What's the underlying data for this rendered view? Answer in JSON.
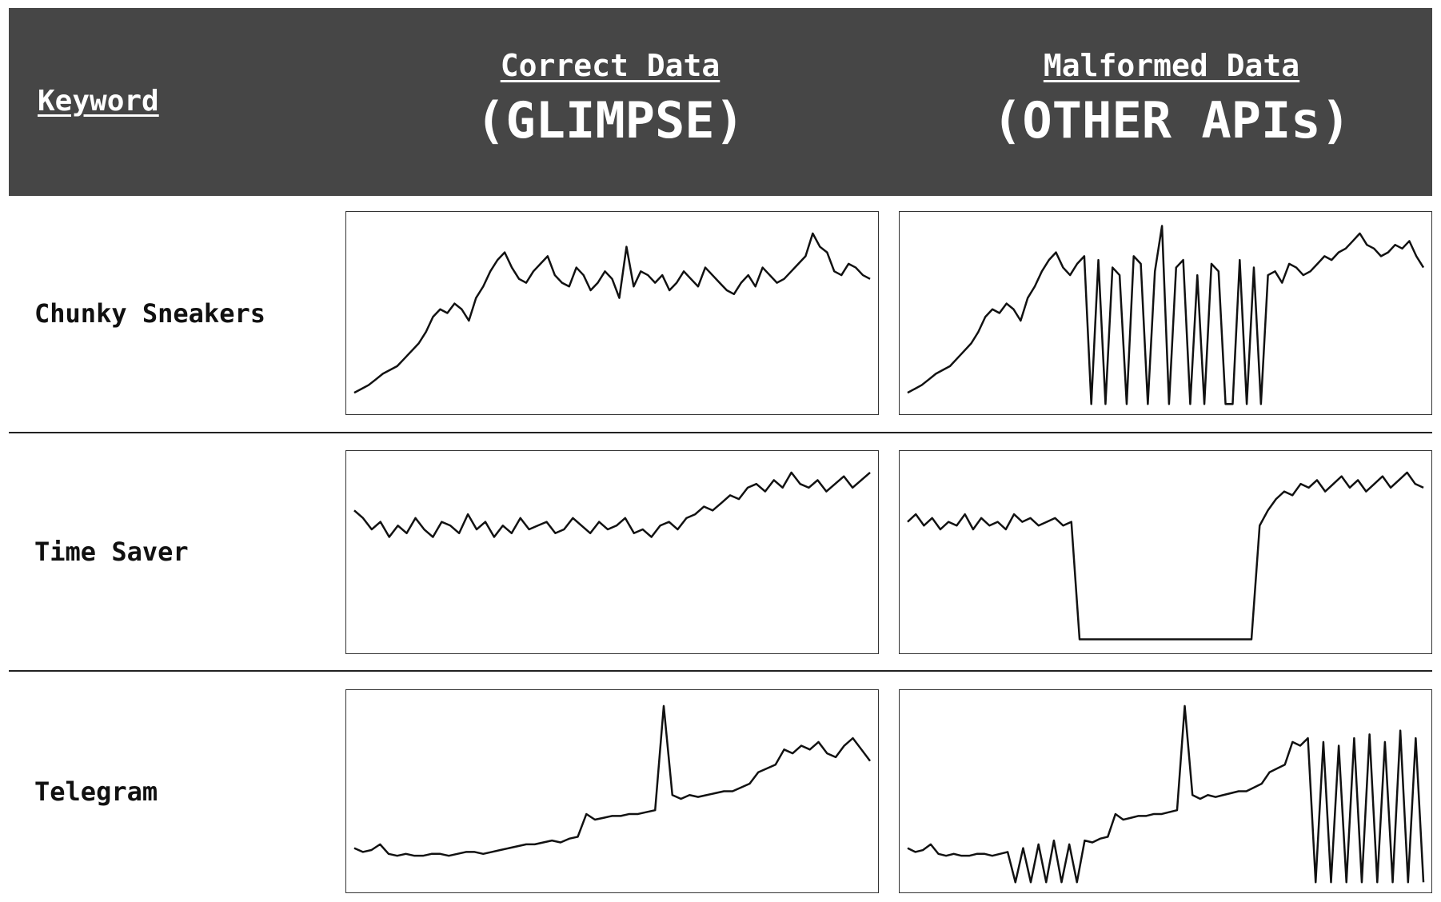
{
  "header": {
    "keyword": "Keyword",
    "col1_sub": "Correct Data",
    "col1_main": "(GLIMPSE)",
    "col2_sub": "Malformed Data",
    "col2_main": "(OTHER APIs)"
  },
  "rows": [
    {
      "label": "Chunky Sneakers"
    },
    {
      "label": "Time Saver"
    },
    {
      "label": "Telegram"
    }
  ],
  "chart_data": [
    {
      "type": "line",
      "keyword": "Chunky Sneakers",
      "source": "Correct Data (GLIMPSE)",
      "ylim": [
        0,
        100
      ],
      "values": [
        8,
        10,
        12,
        15,
        18,
        20,
        22,
        26,
        30,
        34,
        40,
        48,
        52,
        50,
        55,
        52,
        46,
        58,
        64,
        72,
        78,
        82,
        74,
        68,
        66,
        72,
        76,
        80,
        70,
        66,
        64,
        74,
        70,
        62,
        66,
        72,
        68,
        58,
        85,
        64,
        72,
        70,
        66,
        70,
        62,
        66,
        72,
        68,
        64,
        74,
        70,
        66,
        62,
        60,
        66,
        70,
        64,
        74,
        70,
        66,
        68,
        72,
        76,
        80,
        92,
        85,
        82,
        72,
        70,
        76,
        74,
        70,
        68
      ]
    },
    {
      "type": "line",
      "keyword": "Chunky Sneakers",
      "source": "Malformed Data (OTHER APIs)",
      "ylim": [
        0,
        100
      ],
      "values": [
        8,
        10,
        12,
        15,
        18,
        20,
        22,
        26,
        30,
        34,
        40,
        48,
        52,
        50,
        55,
        52,
        46,
        58,
        64,
        72,
        78,
        82,
        74,
        70,
        76,
        80,
        2,
        78,
        2,
        74,
        70,
        2,
        80,
        76,
        2,
        72,
        96,
        2,
        74,
        78,
        2,
        70,
        2,
        76,
        72,
        2,
        2,
        78,
        2,
        74,
        2,
        70,
        72,
        66,
        76,
        74,
        70,
        72,
        76,
        80,
        78,
        82,
        84,
        88,
        92,
        86,
        84,
        80,
        82,
        86,
        84,
        88,
        80,
        74
      ]
    },
    {
      "type": "line",
      "keyword": "Time Saver",
      "source": "Correct Data (GLIMPSE)",
      "ylim": [
        0,
        100
      ],
      "values": [
        72,
        68,
        62,
        66,
        58,
        64,
        60,
        68,
        62,
        58,
        66,
        64,
        60,
        70,
        62,
        66,
        58,
        64,
        60,
        68,
        62,
        64,
        66,
        60,
        62,
        68,
        64,
        60,
        66,
        62,
        64,
        68,
        60,
        62,
        58,
        64,
        66,
        62,
        68,
        70,
        74,
        72,
        76,
        80,
        78,
        84,
        86,
        82,
        88,
        84,
        92,
        86,
        84,
        88,
        82,
        86,
        90,
        84,
        88,
        92
      ]
    },
    {
      "type": "line",
      "keyword": "Time Saver",
      "source": "Malformed Data (OTHER APIs)",
      "ylim": [
        0,
        100
      ],
      "values": [
        66,
        70,
        64,
        68,
        62,
        66,
        64,
        70,
        62,
        68,
        64,
        66,
        62,
        70,
        66,
        68,
        64,
        66,
        68,
        64,
        66,
        4,
        4,
        4,
        4,
        4,
        4,
        4,
        4,
        4,
        4,
        4,
        4,
        4,
        4,
        4,
        4,
        4,
        4,
        4,
        4,
        4,
        4,
        64,
        72,
        78,
        82,
        80,
        86,
        84,
        88,
        82,
        86,
        90,
        84,
        88,
        82,
        86,
        90,
        84,
        88,
        92,
        86,
        84
      ]
    },
    {
      "type": "line",
      "keyword": "Telegram",
      "source": "Correct Data (GLIMPSE)",
      "ylim": [
        0,
        100
      ],
      "values": [
        20,
        18,
        19,
        22,
        17,
        16,
        17,
        16,
        16,
        17,
        17,
        16,
        17,
        18,
        18,
        17,
        18,
        19,
        20,
        21,
        22,
        22,
        23,
        24,
        23,
        25,
        26,
        38,
        35,
        36,
        37,
        37,
        38,
        38,
        39,
        40,
        95,
        48,
        46,
        48,
        47,
        48,
        49,
        50,
        50,
        52,
        54,
        60,
        62,
        64,
        72,
        70,
        74,
        72,
        76,
        70,
        68,
        74,
        78,
        72,
        66
      ]
    },
    {
      "type": "line",
      "keyword": "Telegram",
      "source": "Malformed Data (OTHER APIs)",
      "ylim": [
        0,
        100
      ],
      "values": [
        20,
        18,
        19,
        22,
        17,
        16,
        17,
        16,
        16,
        17,
        17,
        16,
        17,
        18,
        2,
        20,
        2,
        22,
        2,
        24,
        2,
        22,
        2,
        24,
        23,
        25,
        26,
        38,
        35,
        36,
        37,
        37,
        38,
        38,
        39,
        40,
        95,
        48,
        46,
        48,
        47,
        48,
        49,
        50,
        50,
        52,
        54,
        60,
        62,
        64,
        76,
        74,
        78,
        2,
        76,
        2,
        74,
        2,
        78,
        2,
        80,
        2,
        76,
        2,
        82,
        2,
        78,
        2
      ]
    }
  ]
}
